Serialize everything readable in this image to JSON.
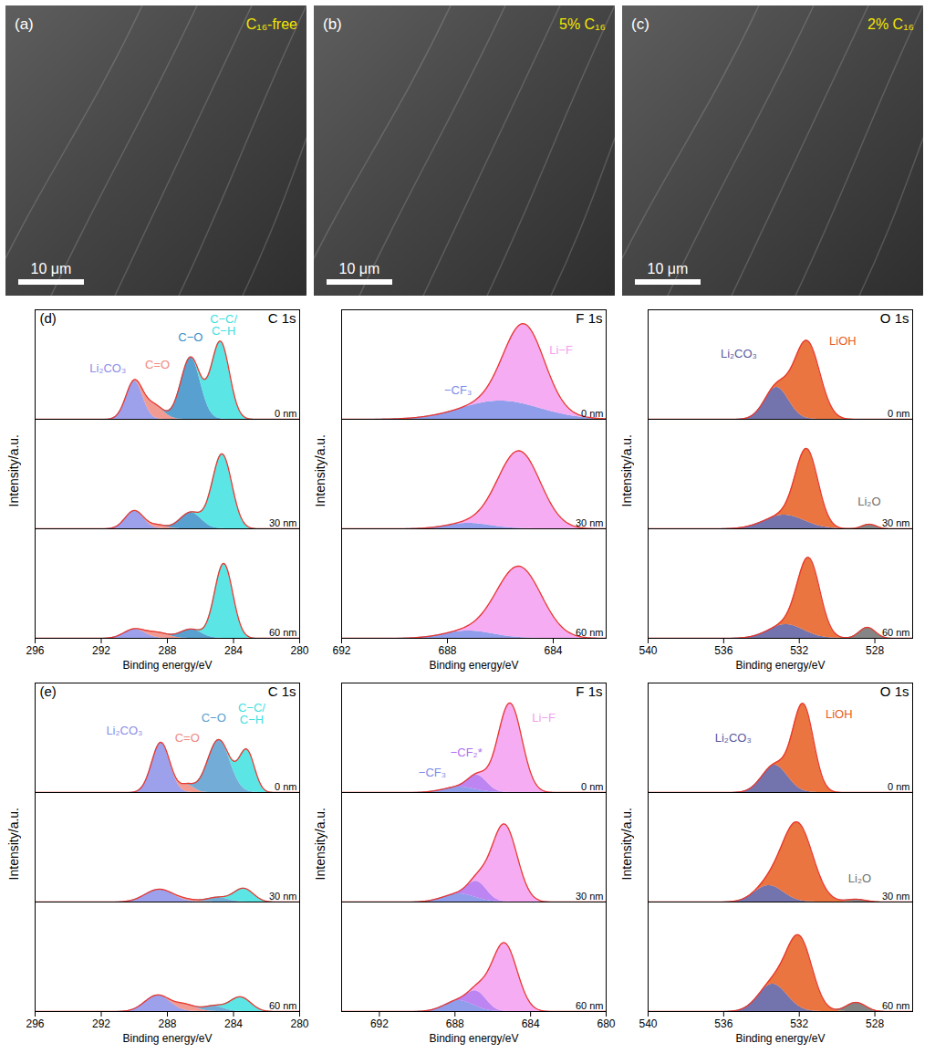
{
  "images": [
    {
      "letter": "(a)",
      "label": "C₁₆-free",
      "scale_bar": "10 μm"
    },
    {
      "letter": "(b)",
      "label": "5% C₁₆",
      "scale_bar": "10 μm"
    },
    {
      "letter": "(c)",
      "label": "2% C₁₆",
      "scale_bar": "10 μm"
    }
  ],
  "chart_data": [
    {
      "type": "area",
      "panel_label": "(d)",
      "title": "C 1s",
      "xlabel": "Binding energy/eV",
      "ylabel": "Intensity/a.u.",
      "color": "#e8392f",
      "xlim": [
        296,
        280
      ],
      "xticks": [
        296,
        292,
        288,
        284,
        280
      ],
      "ylim": [
        0,
        1.2
      ],
      "tick_labels": "x",
      "panels": [
        {
          "label": "0 nm",
          "peaks": [
            {
              "name": "Li₂CO₃",
              "color": "#8c8fe8",
              "center": 290,
              "height": 0.42,
              "fwhm": 1.2
            },
            {
              "name": "C=O",
              "color": "#f08a80",
              "center": 288.8,
              "height": 0.15,
              "fwhm": 1.3
            },
            {
              "name": "C−O",
              "color": "#3a8fc8",
              "center": 286.6,
              "height": 0.68,
              "fwhm": 1.4
            },
            {
              "name": "C−C/C−H",
              "color": "#40e0e0",
              "center": 284.8,
              "height": 0.85,
              "fwhm": 1.3
            }
          ],
          "annotations": [
            {
              "text": "Li₂CO₃",
              "x": 291.6,
              "y": 0.56
            },
            {
              "text": "C=O",
              "x": 288.6,
              "y": 0.6
            },
            {
              "text": "C−O",
              "x": 286.6,
              "y": 0.9
            },
            {
              "text": "C−C/C−H",
              "x": 284.6,
              "y": 1.03
            }
          ]
        },
        {
          "label": "30 nm",
          "peaks": [
            {
              "name": "Li₂CO₃",
              "color": "#8c8fe8",
              "center": 290,
              "height": 0.2,
              "fwhm": 1.3
            },
            {
              "name": "C=O",
              "color": "#f08a80",
              "center": 288.6,
              "height": 0.04,
              "fwhm": 1.2
            },
            {
              "name": "C−O",
              "color": "#3a8fc8",
              "center": 286.6,
              "height": 0.18,
              "fwhm": 1.5
            },
            {
              "name": "C−C/C−H",
              "color": "#40e0e0",
              "center": 284.7,
              "height": 0.82,
              "fwhm": 1.4
            }
          ],
          "annotations": []
        },
        {
          "label": "60 nm",
          "peaks": [
            {
              "name": "Li₂CO₃",
              "color": "#8c8fe8",
              "center": 290,
              "height": 0.1,
              "fwhm": 1.5
            },
            {
              "name": "C=O",
              "color": "#f08a80",
              "center": 288.6,
              "height": 0.06,
              "fwhm": 1.5
            },
            {
              "name": "C−O",
              "color": "#3a8fc8",
              "center": 286.6,
              "height": 0.1,
              "fwhm": 1.5
            },
            {
              "name": "C−C/C−H",
              "color": "#40e0e0",
              "center": 284.6,
              "height": 0.82,
              "fwhm": 1.3
            }
          ],
          "annotations": []
        }
      ]
    },
    {
      "type": "area",
      "title": "F 1s",
      "xlabel": "Binding energy/eV",
      "ylabel": "Intensity/a.u.",
      "color": "#e8392f",
      "xlim": [
        692,
        682
      ],
      "xticks": [
        692,
        688,
        684
      ],
      "ylim": [
        0,
        1.2
      ],
      "tick_labels": "x",
      "panels": [
        {
          "label": "0 nm",
          "peaks": [
            {
              "name": "−CF₃",
              "color": "#7b8ce8",
              "center": 686,
              "height": 0.2,
              "fwhm": 3.5
            },
            {
              "name": "Li−F",
              "color": "#f49ef0",
              "center": 685.1,
              "height": 0.88,
              "fwhm": 1.8
            }
          ],
          "annotations": [
            {
              "text": "−CF₃",
              "x": 687.6,
              "y": 0.32
            },
            {
              "text": "Li−F",
              "x": 683.7,
              "y": 0.76
            }
          ]
        },
        {
          "label": "30 nm",
          "peaks": [
            {
              "name": "−CF₃",
              "color": "#7b8ce8",
              "center": 687.2,
              "height": 0.06,
              "fwhm": 2
            },
            {
              "name": "Li−F",
              "color": "#f49ef0",
              "center": 685.3,
              "height": 0.85,
              "fwhm": 1.9
            }
          ],
          "annotations": []
        },
        {
          "label": "60 nm",
          "peaks": [
            {
              "name": "−CF₃",
              "color": "#7b8ce8",
              "center": 687.2,
              "height": 0.08,
              "fwhm": 2.2
            },
            {
              "name": "Li−F",
              "color": "#f49ef0",
              "center": 685.3,
              "height": 0.78,
              "fwhm": 2
            }
          ],
          "annotations": []
        }
      ]
    },
    {
      "type": "area",
      "title": "O 1s",
      "xlabel": "Binding energy/eV",
      "ylabel": "Intensity/a.u.",
      "color": "#e8392f",
      "xlim": [
        540,
        526
      ],
      "xticks": [
        540,
        536,
        532,
        528
      ],
      "ylim": [
        0,
        1.2
      ],
      "tick_labels": "x",
      "panels": [
        {
          "label": "0 nm",
          "peaks": [
            {
              "name": "Li₂CO₃",
              "color": "#5a5aa0",
              "center": 533.2,
              "height": 0.35,
              "fwhm": 1.5
            },
            {
              "name": "LiOH",
              "color": "#e85d20",
              "center": 531.6,
              "height": 0.85,
              "fwhm": 1.6
            }
          ],
          "annotations": [
            {
              "text": "Li₂CO₃",
              "x": 535.2,
              "y": 0.72
            },
            {
              "text": "LiOH",
              "x": 529.7,
              "y": 0.86
            }
          ]
        },
        {
          "label": "30 nm",
          "peaks": [
            {
              "name": "Li₂CO₃",
              "color": "#5a5aa0",
              "center": 532.8,
              "height": 0.15,
              "fwhm": 2.5
            },
            {
              "name": "LiOH",
              "color": "#e85d20",
              "center": 531.6,
              "height": 0.8,
              "fwhm": 1.4
            },
            {
              "name": "Li₂O",
              "color": "#707070",
              "center": 528.3,
              "height": 0.05,
              "fwhm": 0.9
            }
          ],
          "annotations": [
            {
              "text": "Li₂O",
              "x": 528.3,
              "y": 0.3
            }
          ]
        },
        {
          "label": "60 nm",
          "peaks": [
            {
              "name": "Li₂CO₃",
              "color": "#5a5aa0",
              "center": 532.7,
              "height": 0.15,
              "fwhm": 2.2
            },
            {
              "name": "LiOH",
              "color": "#e85d20",
              "center": 531.5,
              "height": 0.82,
              "fwhm": 1.4
            },
            {
              "name": "Li₂O",
              "color": "#707070",
              "center": 528.4,
              "height": 0.12,
              "fwhm": 1
            }
          ],
          "annotations": []
        }
      ]
    },
    {
      "type": "area",
      "panel_label": "(e)",
      "title": "C 1s",
      "xlabel": "Binding energy/eV",
      "ylabel": "Intensity/a.u.",
      "color": "#e8392f",
      "xlim": [
        296,
        280
      ],
      "xticks": [
        296,
        292,
        288,
        284,
        280
      ],
      "ylim": [
        0,
        1.2
      ],
      "tick_labels": "x",
      "panels": [
        {
          "label": "0 nm",
          "peaks": [
            {
              "name": "Li₂CO₃",
              "color": "#8c8fe8",
              "center": 288.4,
              "height": 0.55,
              "fwhm": 1.3
            },
            {
              "name": "C=O",
              "color": "#f08a80",
              "center": 286.8,
              "height": 0.08,
              "fwhm": 1
            },
            {
              "name": "C−O",
              "color": "#5a9fd0",
              "center": 284.9,
              "height": 0.58,
              "fwhm": 1.6
            },
            {
              "name": "C−C/C−H",
              "color": "#40e0e0",
              "center": 283.2,
              "height": 0.45,
              "fwhm": 1.1
            }
          ],
          "annotations": [
            {
              "text": "Li₂CO₃",
              "x": 290.6,
              "y": 0.68
            },
            {
              "text": "C=O",
              "x": 286.8,
              "y": 0.6
            },
            {
              "text": "C−O",
              "x": 285.2,
              "y": 0.82
            },
            {
              "text": "C−C/C−H",
              "x": 282.9,
              "y": 0.86
            }
          ]
        },
        {
          "label": "30 nm",
          "peaks": [
            {
              "name": "Li₂CO₃",
              "color": "#8c8fe8",
              "center": 288.5,
              "height": 0.14,
              "fwhm": 2
            },
            {
              "name": "C=O",
              "color": "#f08a80",
              "center": 286.8,
              "height": 0.02,
              "fwhm": 1.5
            },
            {
              "name": "C−O",
              "color": "#5a9fd0",
              "center": 285,
              "height": 0.05,
              "fwhm": 1.5
            },
            {
              "name": "C−C/C−H",
              "color": "#40e0e0",
              "center": 283.4,
              "height": 0.15,
              "fwhm": 1.4
            }
          ],
          "annotations": []
        },
        {
          "label": "60 nm",
          "peaks": [
            {
              "name": "Li₂CO₃",
              "color": "#8c8fe8",
              "center": 288.6,
              "height": 0.18,
              "fwhm": 1.8
            },
            {
              "name": "C=O",
              "color": "#f08a80",
              "center": 286.9,
              "height": 0.07,
              "fwhm": 1.5
            },
            {
              "name": "C−O",
              "color": "#5a9fd0",
              "center": 285.2,
              "height": 0.06,
              "fwhm": 1.4
            },
            {
              "name": "C−C/C−H",
              "color": "#40e0e0",
              "center": 283.6,
              "height": 0.16,
              "fwhm": 1.5
            }
          ],
          "annotations": []
        }
      ]
    },
    {
      "type": "area",
      "title": "F 1s",
      "xlabel": "Binding energy/eV",
      "ylabel": "Intensity/a.u.",
      "color": "#e8392f",
      "xlim": [
        694,
        680
      ],
      "xticks": [
        692,
        688,
        684,
        680
      ],
      "ylim": [
        0,
        1.2
      ],
      "tick_labels": "x",
      "panels": [
        {
          "label": "0 nm",
          "peaks": [
            {
              "name": "−CF₃",
              "color": "#7b8ce8",
              "center": 687.8,
              "height": 0.06,
              "fwhm": 2
            },
            {
              "name": "−CF₂*",
              "color": "#b070f0",
              "center": 686.8,
              "height": 0.16,
              "fwhm": 1.2
            },
            {
              "name": "Li−F",
              "color": "#f49ef0",
              "center": 685.1,
              "height": 0.98,
              "fwhm": 1.5
            }
          ],
          "annotations": [
            {
              "text": "−CF₃",
              "x": 689.2,
              "y": 0.22
            },
            {
              "text": "−CF₂*",
              "x": 687.4,
              "y": 0.44
            },
            {
              "text": "Li−F",
              "x": 683.3,
              "y": 0.82
            }
          ]
        },
        {
          "label": "30 nm",
          "peaks": [
            {
              "name": "−CF₃",
              "color": "#7b8ce8",
              "center": 687.8,
              "height": 0.09,
              "fwhm": 2
            },
            {
              "name": "−CF₂*",
              "color": "#b070f0",
              "center": 686.8,
              "height": 0.18,
              "fwhm": 1.2
            },
            {
              "name": "Li−F",
              "color": "#f49ef0",
              "center": 685.4,
              "height": 0.85,
              "fwhm": 1.6
            }
          ],
          "annotations": []
        },
        {
          "label": "60 nm",
          "peaks": [
            {
              "name": "−CF₃",
              "color": "#7b8ce8",
              "center": 687.8,
              "height": 0.12,
              "fwhm": 1.8
            },
            {
              "name": "−CF₂*",
              "color": "#b070f0",
              "center": 686.8,
              "height": 0.17,
              "fwhm": 1.2
            },
            {
              "name": "Li−F",
              "color": "#f49ef0",
              "center": 685.4,
              "height": 0.75,
              "fwhm": 1.6
            }
          ],
          "annotations": []
        }
      ]
    },
    {
      "type": "area",
      "title": "O 1s",
      "xlabel": "Binding energy/eV",
      "ylabel": "Intensity/a.u.",
      "color": "#e8392f",
      "xlim": [
        540,
        526
      ],
      "xticks": [
        540,
        536,
        532,
        528
      ],
      "ylim": [
        0,
        1.2
      ],
      "tick_labels": "x",
      "panels": [
        {
          "label": "0 nm",
          "peaks": [
            {
              "name": "Li₂CO₃",
              "color": "#5a5aa0",
              "center": 533.3,
              "height": 0.3,
              "fwhm": 1.6
            },
            {
              "name": "LiOH",
              "color": "#e85d20",
              "center": 531.8,
              "height": 0.95,
              "fwhm": 1.3
            }
          ],
          "annotations": [
            {
              "text": "Li₂CO₃",
              "x": 535.5,
              "y": 0.6
            },
            {
              "text": "LiOH",
              "x": 529.9,
              "y": 0.86
            }
          ]
        },
        {
          "label": "30 nm",
          "peaks": [
            {
              "name": "Li₂CO₃",
              "color": "#5a5aa0",
              "center": 533.6,
              "height": 0.18,
              "fwhm": 1.8
            },
            {
              "name": "LiOH",
              "color": "#e85d20",
              "center": 532.1,
              "height": 0.85,
              "fwhm": 1.9
            },
            {
              "name": "Li₂O",
              "color": "#707070",
              "center": 529,
              "height": 0.03,
              "fwhm": 1.2
            }
          ],
          "annotations": [
            {
              "text": "Li₂O",
              "x": 528.8,
              "y": 0.26
            }
          ]
        },
        {
          "label": "60 nm",
          "peaks": [
            {
              "name": "Li₂CO₃",
              "color": "#5a5aa0",
              "center": 533.4,
              "height": 0.3,
              "fwhm": 1.8
            },
            {
              "name": "LiOH",
              "color": "#e85d20",
              "center": 532,
              "height": 0.78,
              "fwhm": 1.6
            },
            {
              "name": "Li₂O",
              "color": "#707070",
              "center": 529,
              "height": 0.1,
              "fwhm": 1.2
            }
          ],
          "annotations": []
        }
      ]
    }
  ]
}
